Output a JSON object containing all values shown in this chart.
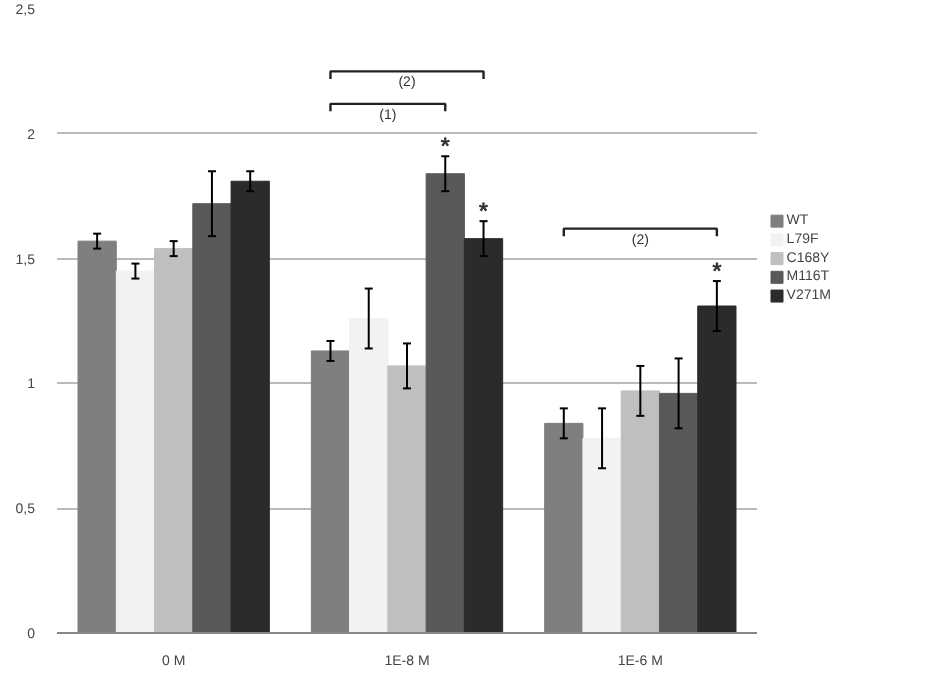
{
  "chart_data": {
    "type": "bar",
    "categories": [
      "0 M",
      "1E-8 M",
      "1E-6 M"
    ],
    "series": [
      {
        "name": "WT",
        "color": "#7f7f7f",
        "values": [
          1.57,
          1.13,
          0.84
        ],
        "errors": [
          0.03,
          0.04,
          0.06
        ]
      },
      {
        "name": "L79F",
        "color": "#f2f2f2",
        "values": [
          1.45,
          1.26,
          0.78
        ],
        "errors": [
          0.03,
          0.12,
          0.12
        ]
      },
      {
        "name": "C168Y",
        "color": "#bfbfbf",
        "values": [
          1.54,
          1.07,
          0.97
        ],
        "errors": [
          0.03,
          0.09,
          0.1
        ]
      },
      {
        "name": "M116T",
        "color": "#595959",
        "values": [
          1.72,
          1.84,
          0.96
        ],
        "errors": [
          0.13,
          0.07,
          0.14
        ],
        "value_labels": [
          null,
          "*",
          null
        ]
      },
      {
        "name": "V271M",
        "color": "#2b2b2b",
        "values": [
          1.81,
          1.58,
          1.31
        ],
        "errors": [
          0.04,
          0.07,
          0.1
        ],
        "value_labels": [
          null,
          "*",
          "*"
        ]
      }
    ],
    "ylim": [
      0,
      2.5
    ],
    "yticks": [
      {
        "value": 0,
        "label": "0"
      },
      {
        "value": 0.5,
        "label": "0,5"
      },
      {
        "value": 1,
        "label": "1"
      },
      {
        "value": 1.5,
        "label": "1,5"
      },
      {
        "value": 2,
        "label": "2"
      },
      {
        "value": 2.5,
        "label": "2,5"
      }
    ],
    "annotations": [
      "(2)",
      "(1)",
      "(2)"
    ],
    "grid": "y",
    "legend": "right"
  }
}
